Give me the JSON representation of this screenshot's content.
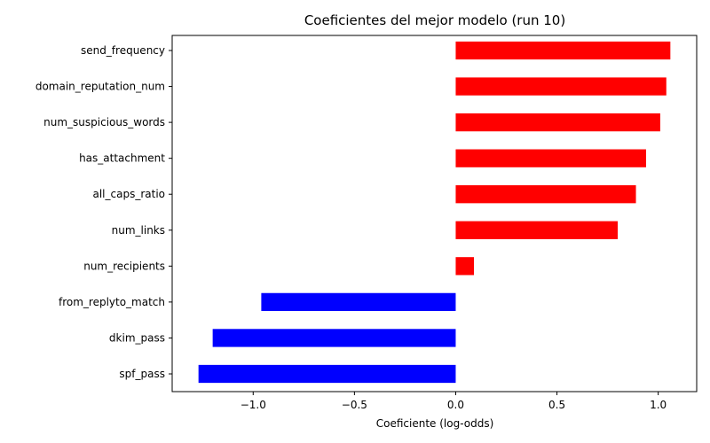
{
  "chart_data": {
    "type": "bar",
    "orientation": "horizontal",
    "title": "Coeficientes del mejor modelo (run 10)",
    "xlabel": "Coeficiente (log-odds)",
    "ylabel": "",
    "categories": [
      "send_frequency",
      "domain_reputation_num",
      "num_suspicious_words",
      "has_attachment",
      "all_caps_ratio",
      "num_links",
      "num_recipients",
      "from_replyto_match",
      "dkim_pass",
      "spf_pass"
    ],
    "values": [
      1.06,
      1.04,
      1.01,
      0.94,
      0.89,
      0.8,
      0.09,
      -0.96,
      -1.2,
      -1.27
    ],
    "xlim": [
      -1.4,
      1.19
    ],
    "xticks": [
      -1.0,
      -0.5,
      0.0,
      0.5,
      1.0
    ],
    "xtick_labels": [
      "−1.0",
      "−0.5",
      "0.0",
      "0.5",
      "1.0"
    ],
    "grid": false,
    "legend": false,
    "colors": {
      "positive": "#ff0000",
      "negative": "#0000ff"
    }
  }
}
